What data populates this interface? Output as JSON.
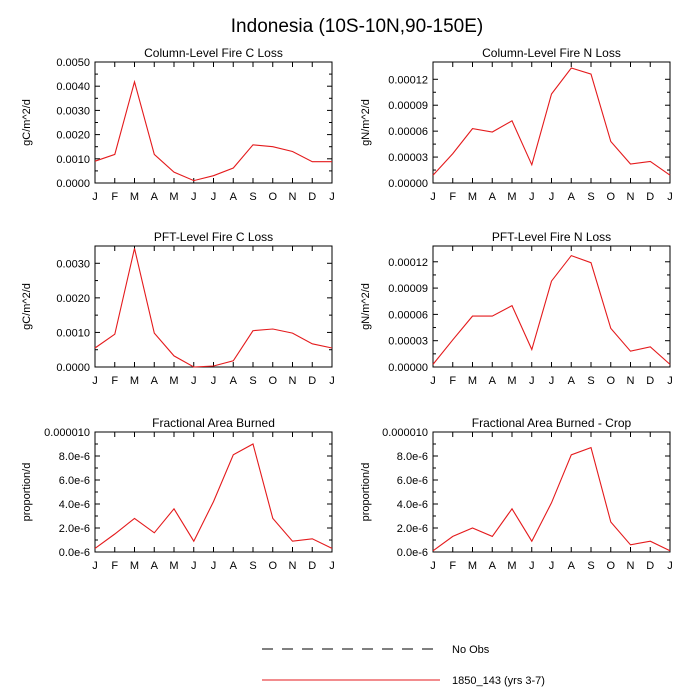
{
  "figure": {
    "title": "Indonesia (10S-10N,90-150E)"
  },
  "legend": [
    {
      "label": "No Obs",
      "style": "dashed",
      "color": "#000000"
    },
    {
      "label": "1850_143 (yrs 3-7)",
      "style": "solid",
      "color": "#e41a1c"
    }
  ],
  "chart_data": [
    {
      "type": "line",
      "title": "Column-Level Fire C Loss",
      "ylabel": "gC/m^2/d",
      "categories": [
        "J",
        "F",
        "M",
        "A",
        "M",
        "J",
        "J",
        "A",
        "S",
        "O",
        "N",
        "D",
        "J"
      ],
      "yticks": [
        "0.0000",
        "0.0010",
        "0.0020",
        "0.0030",
        "0.0040",
        "0.0050"
      ],
      "ylim": [
        0,
        0.005
      ],
      "series": [
        {
          "name": "1850_143 (yrs 3-7)",
          "color": "#e41a1c",
          "values": [
            0.0009,
            0.00118,
            0.00418,
            0.00118,
            0.00045,
            0.0001,
            0.0003,
            0.00062,
            0.00158,
            0.0015,
            0.0013,
            0.00088,
            0.00088
          ]
        }
      ]
    },
    {
      "type": "line",
      "title": "Column-Level Fire N Loss",
      "ylabel": "gN/m^2/d",
      "categories": [
        "J",
        "F",
        "M",
        "A",
        "M",
        "J",
        "J",
        "A",
        "S",
        "O",
        "N",
        "D",
        "J"
      ],
      "yticks": [
        "0.00000",
        "0.00003",
        "0.00006",
        "0.00009",
        "0.00012"
      ],
      "ylim": [
        0,
        0.00014
      ],
      "series": [
        {
          "name": "1850_143 (yrs 3-7)",
          "color": "#e41a1c",
          "values": [
            9e-06,
            3.4e-05,
            6.3e-05,
            5.9e-05,
            7.2e-05,
            2.1e-05,
            0.000103,
            0.000133,
            0.000126,
            4.8e-05,
            2.2e-05,
            2.5e-05,
            9e-06
          ]
        }
      ]
    },
    {
      "type": "line",
      "title": "PFT-Level Fire C Loss",
      "ylabel": "gC/m^2/d",
      "categories": [
        "J",
        "F",
        "M",
        "A",
        "M",
        "J",
        "J",
        "A",
        "S",
        "O",
        "N",
        "D",
        "J"
      ],
      "yticks": [
        "0.0000",
        "0.0010",
        "0.0020",
        "0.0030"
      ],
      "ylim": [
        0,
        0.0035
      ],
      "series": [
        {
          "name": "1850_143 (yrs 3-7)",
          "color": "#e41a1c",
          "values": [
            0.00055,
            0.00095,
            0.00343,
            0.00098,
            0.00032,
            0.0,
            3e-05,
            0.00018,
            0.00105,
            0.0011,
            0.00098,
            0.00067,
            0.00055
          ]
        }
      ]
    },
    {
      "type": "line",
      "title": "PFT-Level Fire N Loss",
      "ylabel": "gN/m^2/d",
      "categories": [
        "J",
        "F",
        "M",
        "A",
        "M",
        "J",
        "J",
        "A",
        "S",
        "O",
        "N",
        "D",
        "J"
      ],
      "yticks": [
        "0.00000",
        "0.00003",
        "0.00006",
        "0.00009",
        "0.00012"
      ],
      "ylim": [
        0,
        0.000138
      ],
      "series": [
        {
          "name": "1850_143 (yrs 3-7)",
          "color": "#e41a1c",
          "values": [
            3e-06,
            3.1e-05,
            5.8e-05,
            5.8e-05,
            7e-05,
            2e-05,
            9.8e-05,
            0.000127,
            0.000119,
            4.4e-05,
            1.8e-05,
            2.3e-05,
            3e-06
          ]
        }
      ]
    },
    {
      "type": "line",
      "title": "Fractional Area Burned",
      "ylabel": "proportion/d",
      "categories": [
        "J",
        "F",
        "M",
        "A",
        "M",
        "J",
        "J",
        "A",
        "S",
        "O",
        "N",
        "D",
        "J"
      ],
      "yticks": [
        "0.0e-6",
        "2.0e-6",
        "4.0e-6",
        "6.0e-6",
        "8.0e-6",
        "0.000010"
      ],
      "ylim": [
        0,
        1e-05
      ],
      "series": [
        {
          "name": "1850_143 (yrs 3-7)",
          "color": "#e41a1c",
          "values": [
            3e-07,
            1.5e-06,
            2.8e-06,
            1.6e-06,
            3.6e-06,
            9e-07,
            4.2e-06,
            8.1e-06,
            9e-06,
            2.8e-06,
            9e-07,
            1.1e-06,
            3e-07
          ]
        }
      ]
    },
    {
      "type": "line",
      "title": "Fractional Area Burned - Crop",
      "ylabel": "proportion/d",
      "categories": [
        "J",
        "F",
        "M",
        "A",
        "M",
        "J",
        "J",
        "A",
        "S",
        "O",
        "N",
        "D",
        "J"
      ],
      "yticks": [
        "0.0e-6",
        "2.0e-6",
        "4.0e-6",
        "6.0e-6",
        "8.0e-6",
        "0.000010"
      ],
      "ylim": [
        0,
        1e-05
      ],
      "series": [
        {
          "name": "1850_143 (yrs 3-7)",
          "color": "#e41a1c",
          "values": [
            1e-07,
            1.3e-06,
            2e-06,
            1.3e-06,
            3.6e-06,
            9e-07,
            4.1e-06,
            8.1e-06,
            8.7e-06,
            2.5e-06,
            6e-07,
            9e-07,
            1e-07
          ]
        }
      ]
    }
  ]
}
